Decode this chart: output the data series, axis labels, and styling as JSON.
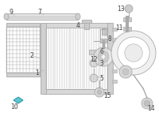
{
  "bg_color": "#ffffff",
  "line_color": "#aaaaaa",
  "dark_color": "#444444",
  "mid_color": "#cccccc",
  "highlight_color": "#5bc8d0",
  "figsize": [
    2.0,
    1.47
  ],
  "dpi": 100
}
